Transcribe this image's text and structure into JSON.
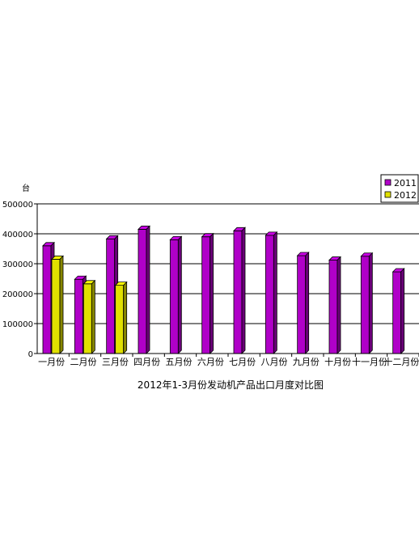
{
  "chart_data": {
    "type": "bar",
    "title": "2012年1-3月份发动机产品出口月度对比图",
    "ylabel": "台",
    "xlabel": "",
    "ylim": [
      0,
      500000
    ],
    "yticks": [
      "0",
      "100000",
      "200000",
      "300000",
      "400000",
      "500000"
    ],
    "categories": [
      "一月份",
      "二月份",
      "三月份",
      "四月份",
      "五月份",
      "六月份",
      "七月份",
      "八月份",
      "九月份",
      "十月份",
      "十一月份",
      "十二月份"
    ],
    "series": [
      {
        "name": "2011",
        "color": "#b000c8",
        "values": [
          360000,
          248000,
          383000,
          415000,
          380000,
          390000,
          410000,
          395000,
          327000,
          312000,
          325000,
          273000
        ]
      },
      {
        "name": "2012",
        "color": "#e0e000",
        "values": [
          315000,
          233000,
          228000,
          null,
          null,
          null,
          null,
          null,
          null,
          null,
          null,
          null
        ]
      }
    ],
    "grid": true,
    "legend_position": "top-right",
    "style": "3d-bar"
  }
}
